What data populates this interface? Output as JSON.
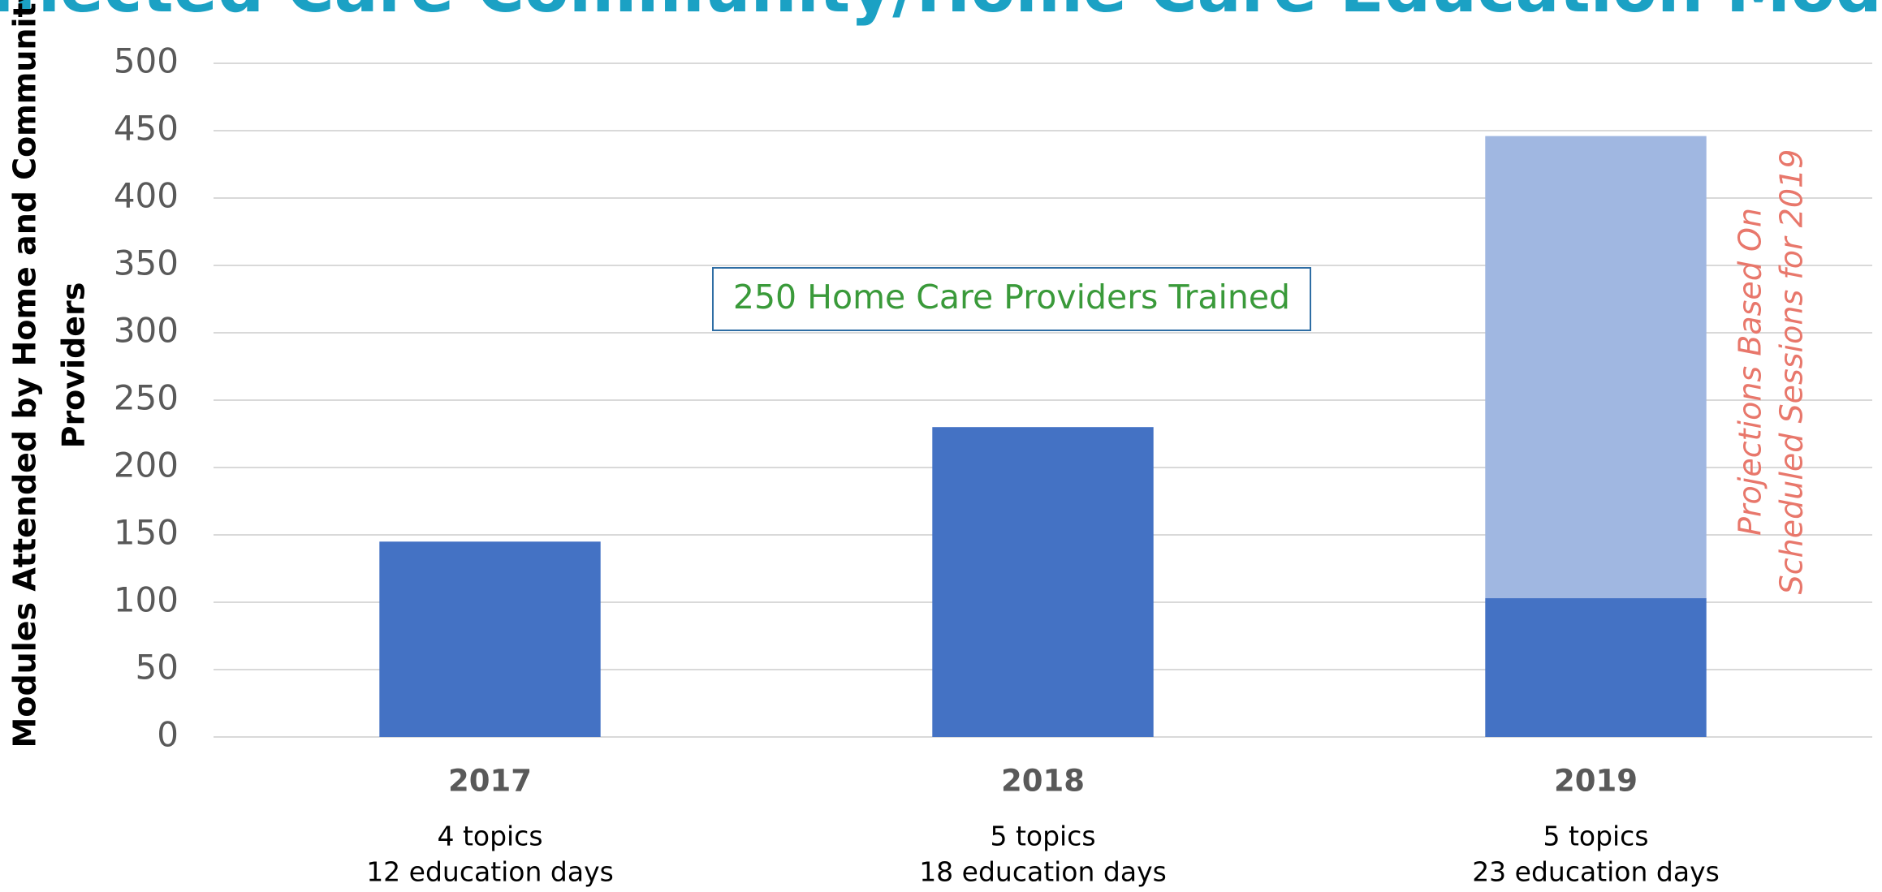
{
  "chart_data": {
    "type": "bar",
    "stacked": true,
    "title": "Connected Care Community/Home Care Education Modules",
    "ylabel": [
      "Modules Attended by Home and Community",
      "Providers"
    ],
    "categories": [
      "2017",
      "2018",
      "2019"
    ],
    "sublabels": [
      [
        "4 topics",
        "12 education days"
      ],
      [
        "5 topics",
        "18 education days"
      ],
      [
        "5 topics",
        "23 education days"
      ]
    ],
    "series": [
      {
        "color": "#4472c4",
        "values": [
          145,
          230,
          103
        ]
      },
      {
        "color": "#a0b7e1",
        "values": [
          null,
          null,
          343
        ]
      }
    ],
    "ylim": [
      0,
      500
    ],
    "yticks": [
      0,
      50,
      100,
      150,
      200,
      250,
      300,
      350,
      400,
      450,
      500
    ],
    "grid": true,
    "annotations": [
      "250 Home Care Providers Trained",
      [
        "Projections Based On",
        "Scheduled Sessions for 2019"
      ]
    ]
  }
}
